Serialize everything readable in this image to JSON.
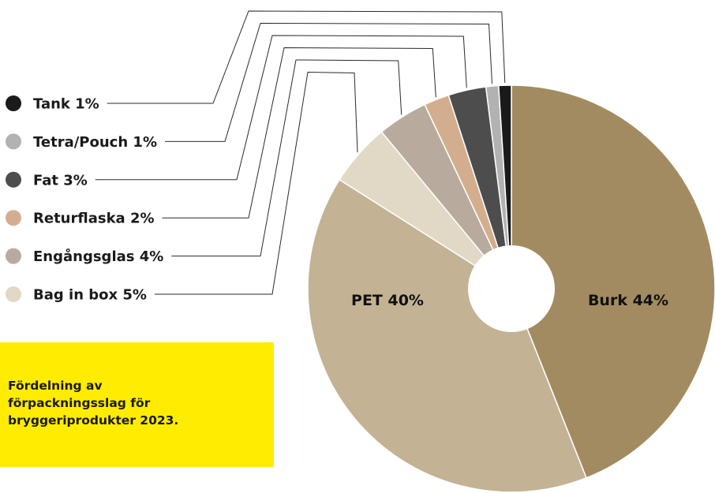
{
  "caption": "Fördelning av\nförpackningsslag för\nbryggeriprodukter 2023.",
  "chart_data": {
    "type": "pie",
    "title": "",
    "categories": [
      "Burk",
      "PET",
      "Bag in box",
      "Engångsglas",
      "Returflaska",
      "Fat",
      "Tetra/Pouch",
      "Tank"
    ],
    "values": [
      44,
      40,
      5,
      4,
      2,
      3,
      1,
      1
    ],
    "unit": "%",
    "colors": [
      "#a38b61",
      "#c4b294",
      "#e2d8c6",
      "#b8aa9d",
      "#d3ae8e",
      "#4d4d4d",
      "#b1b2b2",
      "#1a1a1a"
    ],
    "slice_labels": [
      {
        "category": "Burk",
        "text": "Burk 44%"
      },
      {
        "category": "PET",
        "text": "PET 40%"
      }
    ],
    "legend": [
      {
        "category": "Tank",
        "text": "Tank 1%",
        "color": "#1a1a1a"
      },
      {
        "category": "Tetra/Pouch",
        "text": "Tetra/Pouch 1%",
        "color": "#b1b2b2"
      },
      {
        "category": "Fat",
        "text": "Fat 3%",
        "color": "#4d4d4d"
      },
      {
        "category": "Returflaska",
        "text": "Returflaska 2%",
        "color": "#d3ae8e"
      },
      {
        "category": "Engångsglas",
        "text": "Engångsglas 4%",
        "color": "#b8aa9d"
      },
      {
        "category": "Bag in box",
        "text": "Bag in box 5%",
        "color": "#e2d8c6"
      }
    ],
    "donut_hole": true,
    "legend_position": "left"
  }
}
